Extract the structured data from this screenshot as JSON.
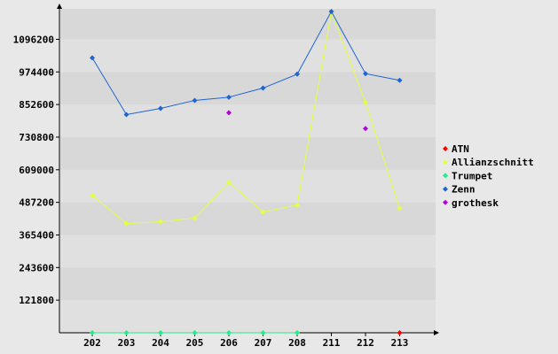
{
  "chart_data": {
    "type": "line",
    "title": "",
    "xlabel": "",
    "ylabel": "",
    "categories": [
      "202",
      "203",
      "204",
      "205",
      "206",
      "207",
      "208",
      "211",
      "212",
      "213"
    ],
    "ylim": [
      0,
      1210000
    ],
    "yticks": [
      121800,
      243600,
      365400,
      487200,
      609000,
      730800,
      852600,
      974400,
      1096200
    ],
    "ytick_labels": [
      "121800",
      "243600",
      "365400",
      "487200",
      "609000",
      "730800",
      "852600",
      "974400",
      "1096200"
    ],
    "grid": "alternating horizontal bands",
    "legend_position": "right",
    "series": [
      {
        "name": "ATN",
        "color": "#ff0000",
        "values": [
          null,
          null,
          null,
          null,
          null,
          null,
          null,
          null,
          null,
          0
        ]
      },
      {
        "name": "Allianzschnitt",
        "color": "#e6ff3c",
        "values": [
          513000,
          408000,
          415000,
          428000,
          562000,
          451000,
          477000,
          1198000,
          861000,
          465000
        ]
      },
      {
        "name": "Trumpet",
        "color": "#22ee88",
        "values": [
          0,
          0,
          0,
          0,
          0,
          0,
          0,
          null,
          null,
          null
        ]
      },
      {
        "name": "Zenn",
        "color": "#1e64d2",
        "values": [
          1027000,
          815000,
          838000,
          868000,
          880000,
          914000,
          966000,
          1200000,
          968000,
          943000
        ]
      },
      {
        "name": "grothesk",
        "color": "#b400dc",
        "values": [
          null,
          null,
          null,
          null,
          822000,
          null,
          null,
          null,
          763000,
          null
        ]
      }
    ]
  }
}
